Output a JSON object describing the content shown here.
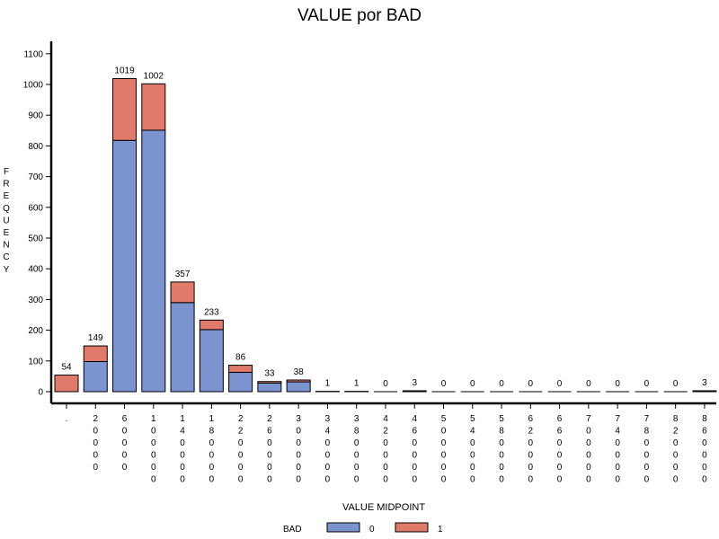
{
  "chart_data": {
    "type": "bar",
    "stacked": true,
    "title": "VALUE por BAD",
    "ylabel": "FREQUENCY",
    "xlabel": "VALUE MIDPOINT",
    "ylim": [
      0,
      1100
    ],
    "yticks": [
      "0",
      "100",
      "200",
      "300",
      "400",
      "500",
      "600",
      "700",
      "800",
      "900",
      "1000",
      "1100"
    ],
    "categories": [
      ".",
      "20000",
      "60000",
      "100000",
      "140000",
      "180000",
      "220000",
      "260000",
      "300000",
      "340000",
      "380000",
      "420000",
      "460000",
      "500000",
      "540000",
      "580000",
      "620000",
      "660000",
      "700000",
      "740000",
      "780000",
      "820000",
      "860000"
    ],
    "series": [
      {
        "name": "0",
        "color": "#7b93cf",
        "values": [
          0,
          98,
          818,
          851,
          290,
          202,
          63,
          28,
          32,
          0,
          0,
          0,
          0,
          0,
          0,
          0,
          0,
          0,
          0,
          0,
          0,
          0,
          0
        ]
      },
      {
        "name": "1",
        "color": "#e07b6b",
        "values": [
          54,
          51,
          201,
          151,
          67,
          31,
          23,
          5,
          6,
          1,
          1,
          0,
          3,
          0,
          0,
          0,
          0,
          0,
          0,
          0,
          0,
          0,
          3
        ]
      }
    ],
    "totals": [
      "54",
      "149",
      "1019",
      "1002",
      "357",
      "233",
      "86",
      "33",
      "38",
      "1",
      "1",
      "0",
      "3",
      "0",
      "0",
      "0",
      "0",
      "0",
      "0",
      "0",
      "0",
      "0",
      "3"
    ],
    "legend": {
      "title": "BAD",
      "entries": [
        "0",
        "1"
      ]
    }
  }
}
